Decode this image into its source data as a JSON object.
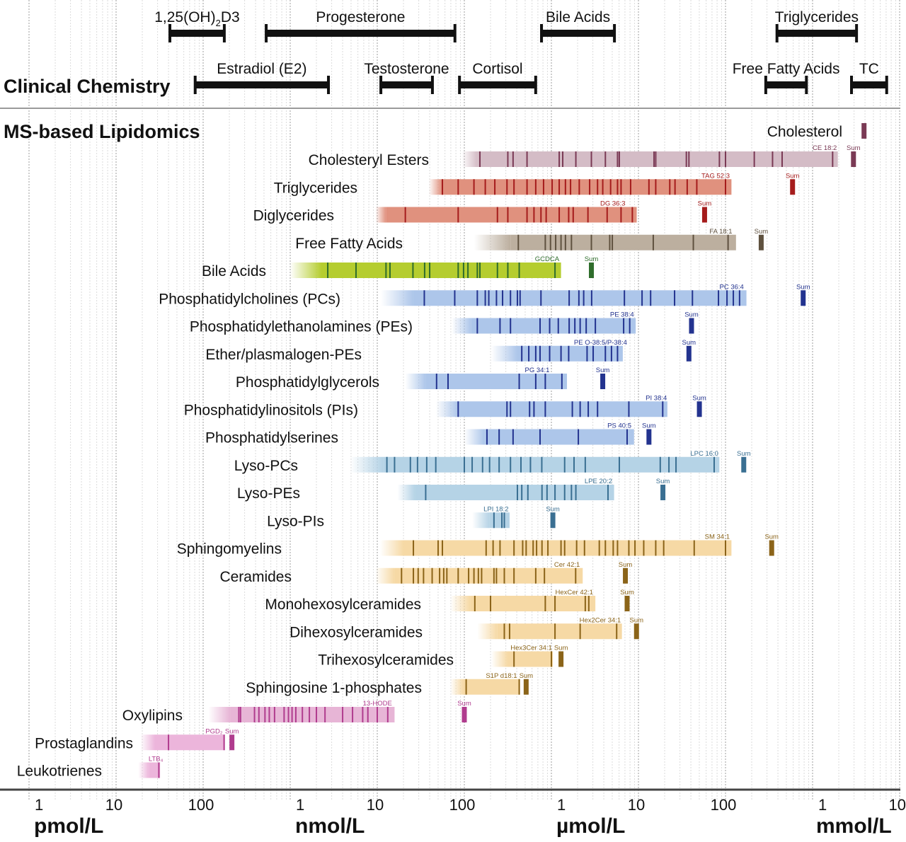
{
  "chart_data": {
    "type": "range-bar",
    "unit": "nmol/L",
    "x_scale": "log",
    "xlim": [
      0.001,
      10000000
    ],
    "grid": true,
    "x_tick_labels": [
      "1",
      "10",
      "100",
      "1",
      "10",
      "100",
      "1",
      "10",
      "100",
      "1",
      "10"
    ],
    "x_units": [
      "pmol/L",
      "nmol/L",
      "µmol/L",
      "mmol/L"
    ],
    "clinical": {
      "title": "Clinical Chemistry",
      "ranges": [
        {
          "label": "1,25(OH)",
          "sub": "2",
          "label_end": "D3",
          "min": 0.0415,
          "max": 0.175,
          "row": 0
        },
        {
          "label": "Progesterone",
          "min": 0.53,
          "max": 78,
          "row": 0
        },
        {
          "label": "Bile Acids",
          "min": 770,
          "max": 5300,
          "row": 0
        },
        {
          "label": "Triglycerides",
          "min": 390000,
          "max": 3200000,
          "row": 0
        },
        {
          "label": "Estradiol (E2)",
          "min": 0.081,
          "max": 2.75,
          "row": 1
        },
        {
          "label": "Testosterone",
          "min": 11,
          "max": 43,
          "row": 1
        },
        {
          "label": "Cortisol",
          "min": 88,
          "max": 660,
          "row": 1
        },
        {
          "label": "Free Fatty Acids",
          "min": 290000,
          "max": 850000,
          "row": 1
        },
        {
          "label": "TC",
          "min": 2800000,
          "max": 7100000,
          "row": 1
        }
      ],
      "bar_color": "#111111"
    },
    "lipidomics": {
      "title": "MS-based Lipidomics",
      "sum_label": "Sum",
      "classes": [
        {
          "label": "Cholesterol",
          "sum": 3900000,
          "color": "#d4bcc6",
          "tick_color": "#7a3a55"
        },
        {
          "label": "Cholesteryl Esters",
          "fade": 93,
          "start": 141,
          "end": 1950000,
          "ticks": [
            151,
            316,
            363,
            525,
            1230,
            1350,
            1910,
            2880,
            4170,
            5750,
            6030,
            15100,
            15800,
            35500,
            38000,
            85100,
            100000,
            214000,
            347000,
            447000,
            1700000
          ],
          "top": "CE 18:2",
          "top_value": 1700000,
          "sum": 2950000,
          "color": "#d4bcc6",
          "tick_color": "#7a3a55"
        },
        {
          "label": "Triglycerides",
          "fade": 39,
          "start": 55,
          "end": 117000,
          "ticks": [
            56,
            85,
            129,
            174,
            224,
            309,
            372,
            525,
            661,
            813,
            1020,
            1230,
            1450,
            1660,
            2090,
            2750,
            3390,
            3890,
            4790,
            5750,
            6310,
            8130,
            13200,
            15800,
            22900,
            26300,
            36300,
            46800,
            100000
          ],
          "top": "TAG 52:3",
          "top_value": 100000,
          "sum": 589000,
          "color": "#e0917e",
          "tick_color": "#a51c1c"
        },
        {
          "label": "Diglycerides",
          "fade": 9.5,
          "start": 12.6,
          "end": 9550,
          "ticks": [
            21,
            85,
            240,
            316,
            525,
            631,
            759,
            871,
            1230,
            1580,
            1780,
            2630,
            4370,
            6310,
            8510
          ],
          "top": "DG 36:3",
          "top_value": 6310,
          "sum": 57500,
          "color": "#e0917e",
          "tick_color": "#a51c1c"
        },
        {
          "label": "Free Fatty Acids",
          "fade": 129,
          "start": 339,
          "end": 132000,
          "ticks": [
            417,
            851,
            977,
            1120,
            1290,
            1450,
            1700,
            2880,
            4680,
            5010,
            14800,
            42700,
            107000
          ],
          "top": "FA 18:1",
          "top_value": 107000,
          "sum": 257000,
          "color": "#bcaf9f",
          "tick_color": "#5f513f"
        },
        {
          "label": "Bile Acids",
          "fade": 1,
          "start": 2.3,
          "end": 1290,
          "ticks": [
            2.7,
            5.7,
            12.6,
            14,
            25.7,
            35,
            40,
            85,
            98,
            110,
            141,
            151,
            240,
            316,
            427,
            1100
          ],
          "top": "GCDCA",
          "top_value": 1100,
          "sum": 2880,
          "color": "#b5cd2f",
          "tick_color": "#2f6d2c"
        },
        {
          "label": "Phosphatidylcholines (PCs)",
          "fade": 11,
          "start": 26,
          "end": 174000,
          "ticks": [
            34.7,
            77.6,
            141,
            174,
            191,
            234,
            275,
            339,
            407,
            437,
            759,
            1600,
            2070,
            2350,
            2900,
            6900,
            11000,
            13800,
            26000,
            41700,
            83000,
            104000,
            123000,
            145000
          ],
          "top": "PC 36:4",
          "top_value": 145000,
          "sum": 780000,
          "color": "#adc6ea",
          "tick_color": "#23338f"
        },
        {
          "label": "Phosphatidylethanolamines (PEs)",
          "fade": 72,
          "start": 120,
          "end": 9300,
          "ticks": [
            141,
            257,
            339,
            741,
            955,
            1200,
            1600,
            1860,
            2140,
            2510,
            3200,
            6760,
            7940
          ],
          "top": "PE 38:4",
          "top_value": 7940,
          "sum": 40700,
          "color": "#adc6ea",
          "tick_color": "#23338f"
        },
        {
          "label": "Ether/plasmalogen-PEs",
          "fade": 204,
          "start": 407,
          "end": 6610,
          "ticks": [
            457,
            550,
            661,
            741,
            955,
            1290,
            1580,
            2570,
            3020,
            4170,
            4900,
            5750
          ],
          "top": "PE O-38:5/P-38:4",
          "top_value": 6610,
          "sum": 38000,
          "color": "#adc6ea",
          "tick_color": "#23338f"
        },
        {
          "label": "Phosphatidylglycerols",
          "fade": 21,
          "start": 36,
          "end": 1510,
          "ticks": [
            48,
            65,
            427,
            661,
            851,
            1320
          ],
          "top": "PG 34:1",
          "top_value": 851,
          "sum": 3890,
          "color": "#adc6ea",
          "tick_color": "#23338f"
        },
        {
          "label": "Phosphatidylinositols (PIs)",
          "fade": 47,
          "start": 85,
          "end": 21500,
          "ticks": [
            85,
            309,
            339,
            562,
            631,
            851,
            1740,
            2140,
            2650,
            3390,
            7760,
            19000
          ],
          "top": "PI 38:4",
          "top_value": 19000,
          "sum": 50100,
          "color": "#adc6ea",
          "tick_color": "#23338f"
        },
        {
          "label": "Phosphatidylserines",
          "fade": 100,
          "start": 170,
          "end": 8900,
          "ticks": [
            182,
            251,
            363,
            741,
            2040,
            7410
          ],
          "top": "PS 40:5",
          "top_value": 7410,
          "sum": 13200,
          "color": "#adc6ea",
          "tick_color": "#23338f"
        },
        {
          "label": "Lyso-PCs",
          "fade": 4.9,
          "start": 11.7,
          "end": 85000,
          "ticks": [
            12.9,
            15.8,
            24,
            29,
            37,
            47,
            100,
            123,
            162,
            195,
            251,
            339,
            447,
            575,
            776,
            1420,
            1820,
            2450,
            6030,
            17800,
            22400,
            27000,
            74100
          ],
          "top": "LPC 16:0",
          "top_value": 74100,
          "sum": 162000,
          "color": "#b5d3e6",
          "tick_color": "#3a6f92"
        },
        {
          "label": "Lyso-PEs",
          "fade": 17,
          "start": 27,
          "end": 5250,
          "ticks": [
            36,
            407,
            457,
            537,
            780,
            891,
            1100,
            1420,
            1700,
            1910,
            4470
          ],
          "top": "LPE 20:2",
          "top_value": 4470,
          "sum": 19100,
          "color": "#b5d3e6",
          "tick_color": "#3a6f92"
        },
        {
          "label": "Lyso-PIs",
          "fade": 123,
          "start": 195,
          "end": 331,
          "ticks": [
            219,
            270,
            288
          ],
          "top": "LPI 18:2",
          "top_value": 288,
          "sum": 1040,
          "color": "#b5d3e6",
          "tick_color": "#3a6f92"
        },
        {
          "label": "Sphingomyelins",
          "fade": 10.7,
          "start": 20,
          "end": 117000,
          "ticks": [
            26,
            50,
            56,
            178,
            214,
            257,
            372,
            468,
            513,
            617,
            676,
            780,
            912,
            1290,
            1420,
            1950,
            2400,
            3550,
            4170,
            5130,
            5750,
            7760,
            9120,
            11500,
            15800,
            19500,
            43700,
            100000
          ],
          "top": "SM 34:1",
          "top_value": 100000,
          "sum": 339000,
          "color": "#f6d9a5",
          "tick_color": "#8b6419"
        },
        {
          "label": "Ceramides",
          "fade": 9.5,
          "start": 15.8,
          "end": 2290,
          "ticks": [
            19,
            26,
            29.5,
            34,
            42.7,
            52,
            58,
            63,
            85,
            112,
            129,
            145,
            158,
            219,
            234,
            288,
            372,
            661,
            832,
            1900
          ],
          "top": "Cer 42:1",
          "top_value": 1900,
          "sum": 7080,
          "color": "#f6d9a5",
          "tick_color": "#8b6419"
        },
        {
          "label": "Monohexosylceramides",
          "fade": 69,
          "start": 117,
          "end": 3200,
          "ticks": [
            132,
            200,
            851,
            1100,
            2450,
            2690
          ],
          "top": "HexCer 42:1",
          "top_value": 2690,
          "sum": 7410,
          "color": "#f6d9a5",
          "tick_color": "#8b6419"
        },
        {
          "label": "Dihexosylceramides",
          "fade": 141,
          "start": 240,
          "end": 6460,
          "ticks": [
            288,
            331,
            1100,
            2140,
            5620
          ],
          "top": "Hex2Cer 34:1",
          "top_value": 5620,
          "sum": 9500,
          "color": "#f6d9a5",
          "tick_color": "#8b6419"
        },
        {
          "label": "Trihexosylceramides",
          "fade": 204,
          "start": 316,
          "end": 1040,
          "ticks": [
            372,
            1000
          ],
          "top": "Hex3Cer 34:1",
          "top_value": 1000,
          "sum": 1290,
          "color": "#f6d9a5",
          "tick_color": "#8b6419"
        },
        {
          "label": "Sphingosine 1-phosphates",
          "fade": 69,
          "start": 98,
          "end": 437,
          "ticks": [
            105,
            427
          ],
          "top": "S1P d18:1",
          "top_value": 427,
          "sum": 513,
          "color": "#f6d9a5",
          "tick_color": "#8b6419"
        },
        {
          "label": "Oxylipins",
          "fade": 0.115,
          "start": 0.204,
          "end": 15.8,
          "ticks": [
            0.257,
            0.269,
            0.389,
            0.437,
            0.513,
            0.575,
            0.661,
            0.851,
            0.955,
            1.05,
            1.16,
            1.38,
            1.66,
            2.0,
            2.51,
            4.0,
            5.2,
            6.8,
            7.8,
            10,
            13.2
          ],
          "top": "13-HODE",
          "top_value": 13.2,
          "sum": 100,
          "color": "#e7b5d6",
          "tick_color": "#b03c8e"
        },
        {
          "label": "Prostaglandins",
          "fade": 0.019,
          "start": 0.028,
          "end": 0.178,
          "ticks": [
            0.04,
            0.174
          ],
          "top": "PGD₂",
          "top_value": 0.174,
          "sum": 0.214,
          "color": "#ecb5db",
          "tick_color": "#b03c8e"
        },
        {
          "label": "Leukotrienes",
          "fade": 0.018,
          "start": 0.024,
          "end": 0.032,
          "ticks": [
            0.031
          ],
          "top": "LTB₄",
          "top_value": 0.031,
          "color": "#ecb5db",
          "tick_color": "#b03c8e"
        }
      ]
    }
  }
}
